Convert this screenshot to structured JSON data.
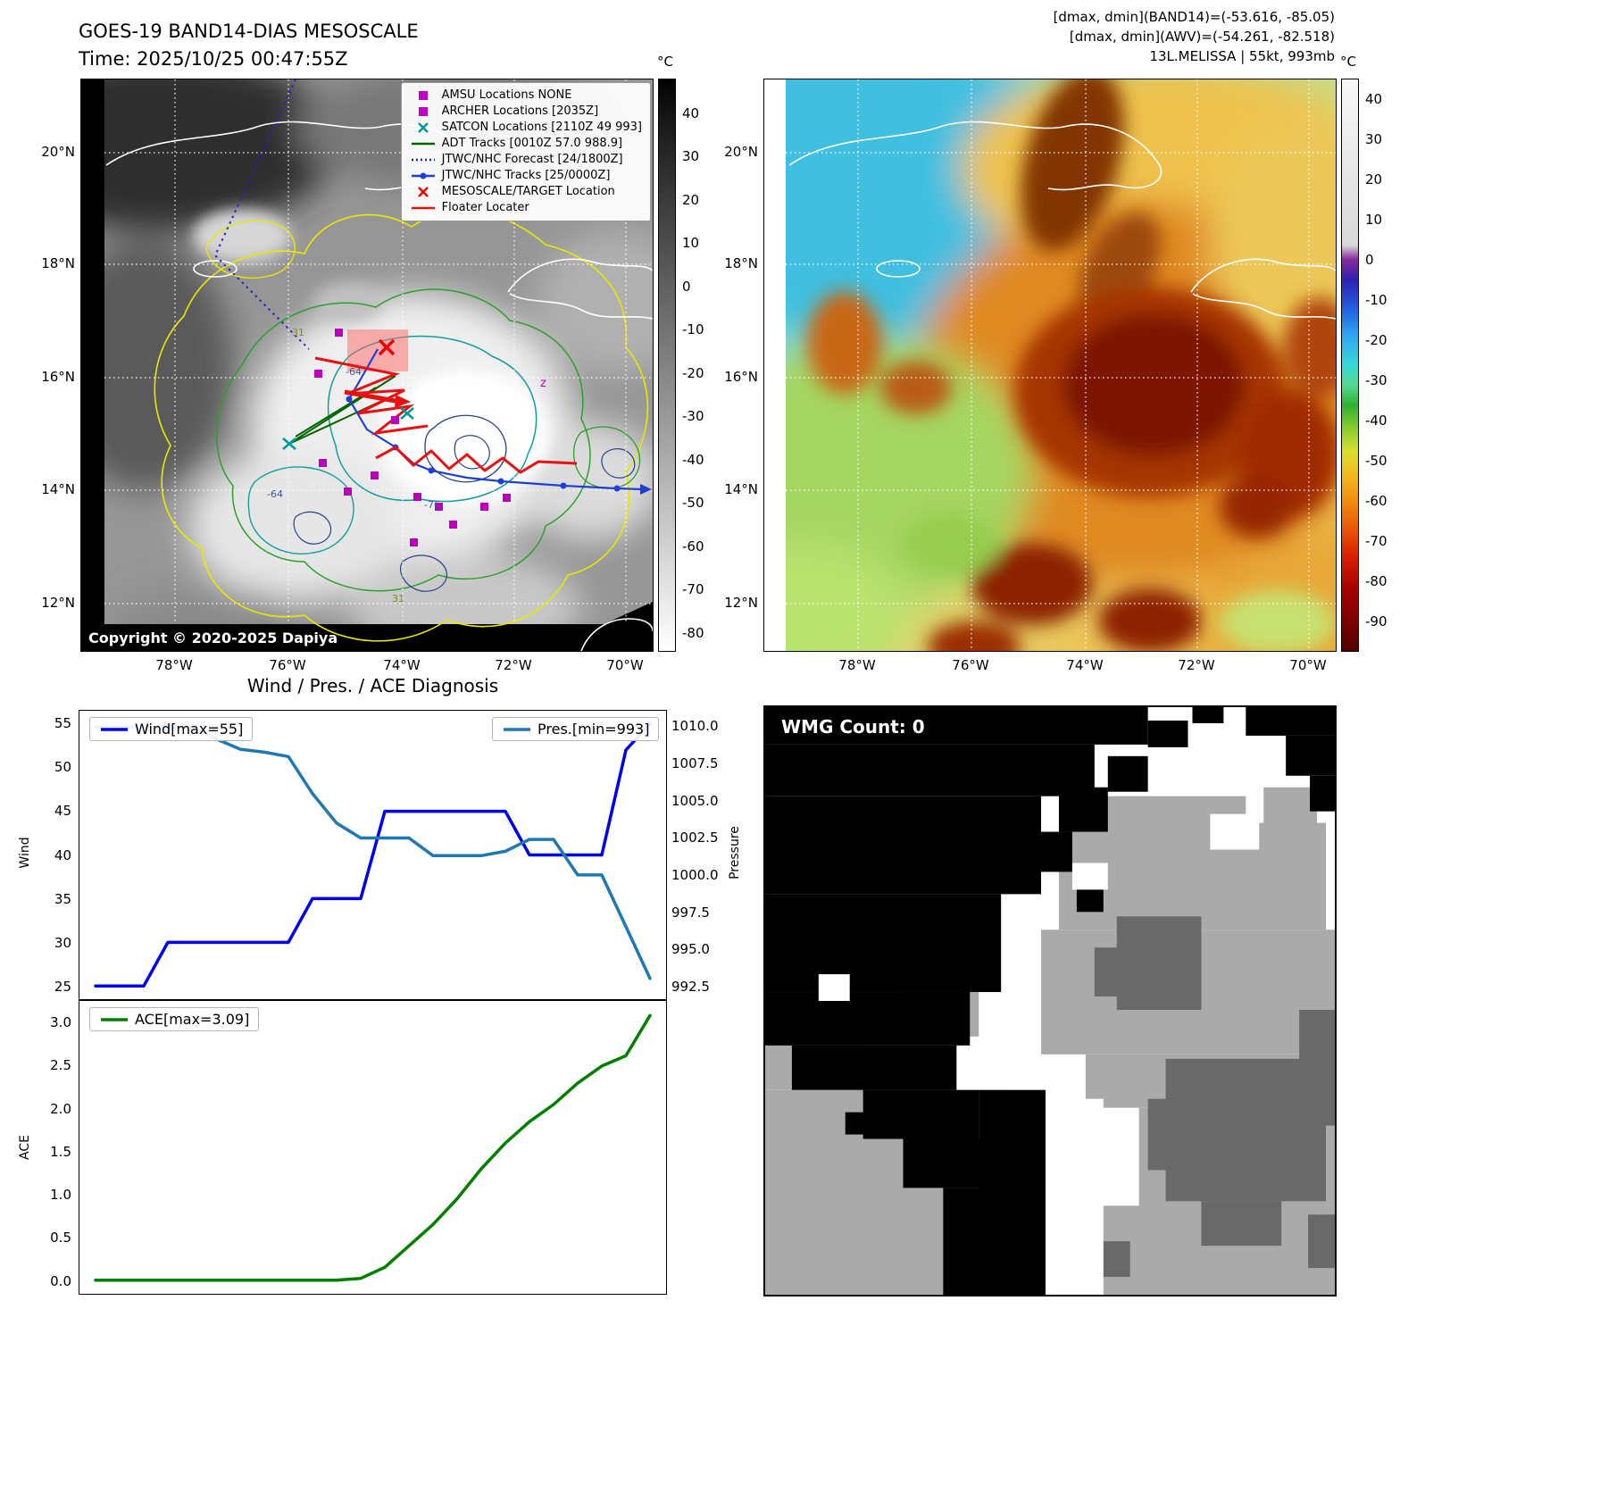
{
  "panel_band14": {
    "title_line1": "GOES-19 BAND14-DIAS MESOSCALE",
    "title_line2": "Time: 2025/10/25 00:47:55Z",
    "copyright": "Copyright © 2020-2025 Dapiya",
    "colorbar": {
      "unit": "°C",
      "ticks": [
        40,
        30,
        20,
        10,
        0,
        -10,
        -20,
        -30,
        -40,
        -50,
        -60,
        -70,
        -80
      ]
    },
    "legend": [
      {
        "label": "AMSU Locations NONE",
        "marker": "square",
        "color": "#c000c0"
      },
      {
        "label": "ARCHER Locations [2035Z]",
        "marker": "square",
        "color": "#c000c0"
      },
      {
        "label": "SATCON Locations [2110Z 49 993]",
        "marker": "x",
        "color": "#009999"
      },
      {
        "label": "ADT Tracks [0010Z 57.0 988.9]",
        "marker": "line",
        "color": "#006400"
      },
      {
        "label": "JTWC/NHC Forecast [24/1800Z]",
        "marker": "dotted",
        "color": "#2222cc"
      },
      {
        "label": "JTWC/NHC Tracks [25/0000Z]",
        "marker": "line-dot",
        "color": "#1f3fd4"
      },
      {
        "label": "MESOSCALE/TARGET Location",
        "marker": "x",
        "color": "#ee0000"
      },
      {
        "label": "Floater Locater",
        "marker": "line",
        "color": "#e81010"
      }
    ],
    "contour_labels": [
      "-64",
      "-64",
      "-76",
      "31",
      "31"
    ],
    "z_label": "z"
  },
  "panel_awv": {
    "header_line1": "[dmax, dmin](BAND14)=(-53.616, -85.05)",
    "header_line2": "[dmax, dmin](AWV)=(-54.261, -82.518)",
    "header_line3": "13L.MELISSA | 55kt, 993mb",
    "colorbar": {
      "unit": "°C",
      "ticks": [
        40,
        30,
        20,
        10,
        0,
        -10,
        -20,
        -30,
        -40,
        -50,
        -60,
        -70,
        -80,
        -90
      ]
    }
  },
  "geo_axes": {
    "lat": [
      "20°N",
      "18°N",
      "16°N",
      "14°N",
      "12°N"
    ],
    "lon": [
      "78°W",
      "76°W",
      "74°W",
      "72°W",
      "70°W"
    ]
  },
  "panel_diagnosis": {
    "title": "Wind / Pres. / ACE Diagnosis"
  },
  "panel_wmg": {
    "label": "WMG Count: 0"
  },
  "chart_data": [
    {
      "type": "line",
      "title": "Wind / Pres. / ACE Diagnosis",
      "xlabel": "",
      "x": [
        0,
        1,
        2,
        3,
        4,
        5,
        6,
        7,
        8,
        9,
        10,
        11,
        12,
        13,
        14,
        15,
        16,
        17,
        18,
        19,
        20,
        21,
        22,
        23
      ],
      "series": [
        {
          "name": "Wind[max=55]",
          "axis": "left",
          "color": "#0000ee",
          "values": [
            25,
            25,
            25,
            30,
            30,
            30,
            30,
            30,
            30,
            35,
            35,
            35,
            45,
            45,
            45,
            45,
            45,
            45,
            40,
            40,
            40,
            40,
            52,
            55
          ]
        },
        {
          "name": "Pres.[min=993]",
          "axis": "right",
          "color": "#1f77b4",
          "values": [
            1010,
            1010,
            1010,
            1010,
            1010,
            1009.2,
            1008.5,
            1008.3,
            1008,
            1005.5,
            1003.5,
            1002.5,
            1002.5,
            1002.5,
            1001.3,
            1001.3,
            1001.3,
            1001.6,
            1002.4,
            1002.4,
            1000,
            1000,
            996.5,
            993
          ]
        }
      ],
      "left_axis": {
        "label": "Wind",
        "ticks": [
          "55",
          "50",
          "45",
          "40",
          "35",
          "30",
          "25"
        ],
        "ylim": [
          23.5,
          56.5
        ]
      },
      "right_axis": {
        "label": "Pressure",
        "ticks": [
          "1010.0",
          "1007.5",
          "1005.0",
          "1002.5",
          "1000.0",
          "997.5",
          "995.0",
          "992.5"
        ],
        "ylim": [
          991.6,
          1011.1
        ]
      },
      "legend_pos": [
        "upper-left",
        "upper-right"
      ],
      "grid": false
    },
    {
      "type": "line",
      "xlabel": "",
      "x": [
        0,
        1,
        2,
        3,
        4,
        5,
        6,
        7,
        8,
        9,
        10,
        11,
        12,
        13,
        14,
        15,
        16,
        17,
        18,
        19,
        20,
        21,
        22,
        23
      ],
      "series": [
        {
          "name": "ACE[max=3.09]",
          "axis": "left",
          "color": "#007f00",
          "values": [
            0,
            0,
            0,
            0,
            0,
            0,
            0,
            0,
            0,
            0,
            0,
            0.02,
            0.15,
            0.4,
            0.65,
            0.95,
            1.3,
            1.6,
            1.85,
            2.05,
            2.3,
            2.5,
            2.62,
            3.09
          ]
        }
      ],
      "left_axis": {
        "label": "ACE",
        "ticks": [
          "3.0",
          "2.5",
          "2.0",
          "1.5",
          "1.0",
          "0.5",
          "0.0"
        ],
        "ylim": [
          -0.16,
          3.26
        ]
      },
      "legend_pos": [
        "upper-left"
      ],
      "grid": false
    }
  ]
}
